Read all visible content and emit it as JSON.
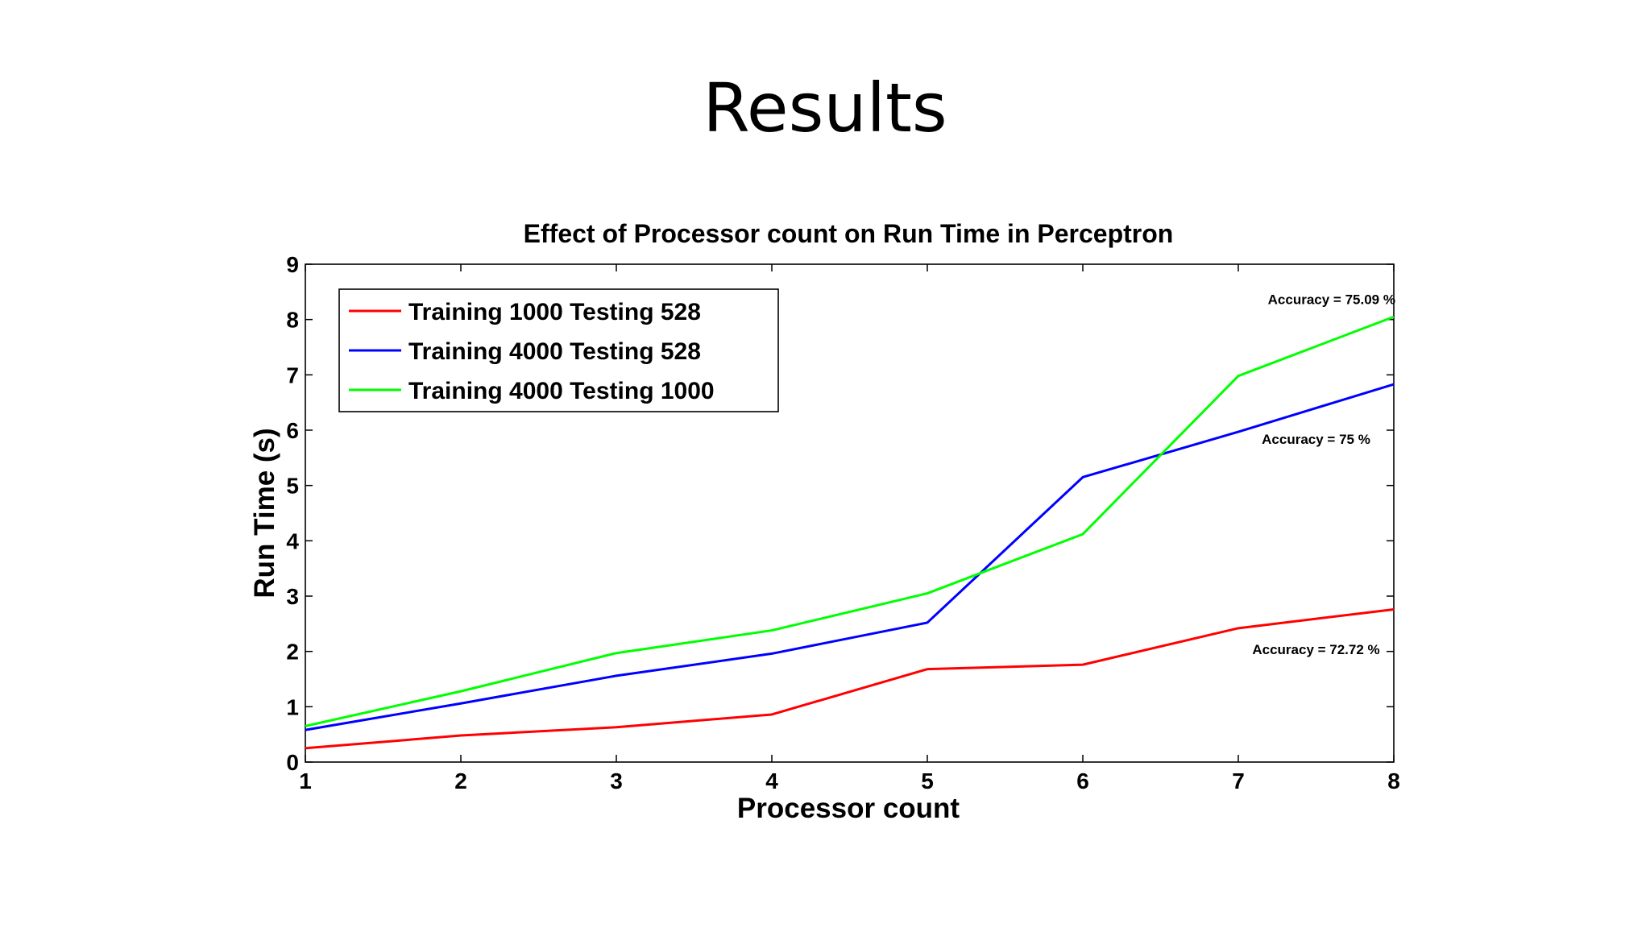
{
  "slide": {
    "title": "Results"
  },
  "chart_data": {
    "type": "line",
    "title": "Effect of Processor count on Run Time in Perceptron",
    "xlabel": "Processor count",
    "ylabel": "Run Time (s)",
    "xlim": [
      1,
      8
    ],
    "ylim": [
      0,
      9
    ],
    "xticks": [
      1,
      2,
      3,
      4,
      5,
      6,
      7,
      8
    ],
    "yticks": [
      0,
      1,
      2,
      3,
      4,
      5,
      6,
      7,
      8,
      9
    ],
    "grid": false,
    "legend_position": "top-left",
    "x": [
      1,
      2,
      3,
      4,
      5,
      6,
      7,
      8
    ],
    "series": [
      {
        "name": "Training 1000 Testing 528",
        "color": "#ff0000",
        "values": [
          0.25,
          0.48,
          0.63,
          0.86,
          1.68,
          1.76,
          2.42,
          2.76
        ]
      },
      {
        "name": "Training 4000 Testing 528",
        "color": "#0000ff",
        "values": [
          0.58,
          1.06,
          1.56,
          1.96,
          2.52,
          5.15,
          5.97,
          6.83
        ]
      },
      {
        "name": "Training 4000 Testing 1000",
        "color": "#00ff00",
        "values": [
          0.65,
          1.28,
          1.97,
          2.38,
          3.05,
          4.12,
          6.98,
          8.05
        ]
      }
    ],
    "annotations": [
      {
        "text": "Accuracy = 75.09 %",
        "x": 7.6,
        "y": 8.28
      },
      {
        "text": "Accuracy = 75 %",
        "x": 7.5,
        "y": 5.75
      },
      {
        "text": "Accuracy = 72.72 %",
        "x": 7.5,
        "y": 1.95
      }
    ]
  }
}
